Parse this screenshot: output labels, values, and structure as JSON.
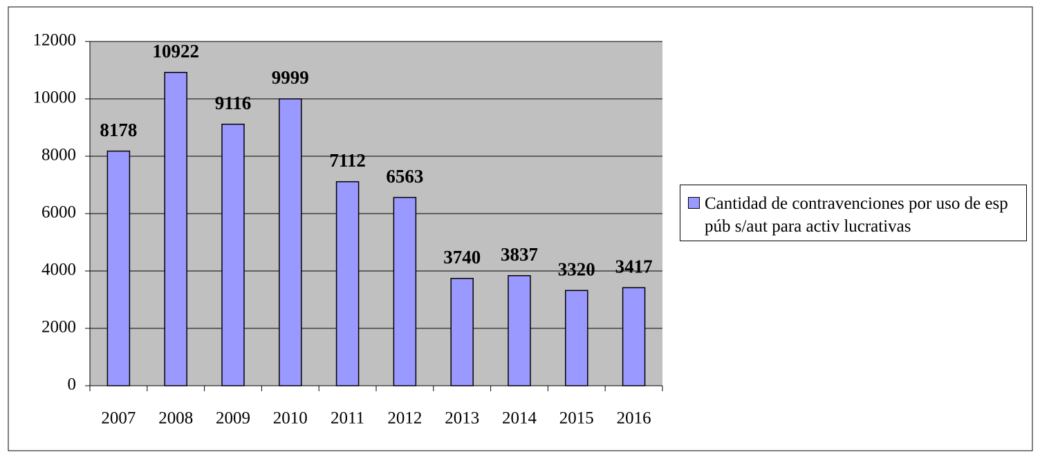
{
  "chart_data": {
    "type": "bar",
    "categories": [
      "2007",
      "2008",
      "2009",
      "2010",
      "2011",
      "2012",
      "2013",
      "2014",
      "2015",
      "2016"
    ],
    "series": [
      {
        "name": "Cantidad de contravenciones por uso de esp púb s/aut para activ lucrativas",
        "color": "#9999ff",
        "values": [
          8178,
          10922,
          9116,
          9999,
          7112,
          6563,
          3740,
          3837,
          3320,
          3417
        ]
      }
    ],
    "ylim": [
      0,
      12000
    ],
    "yticks": [
      0,
      2000,
      4000,
      6000,
      8000,
      10000,
      12000
    ],
    "grid": true,
    "legend": "right"
  }
}
